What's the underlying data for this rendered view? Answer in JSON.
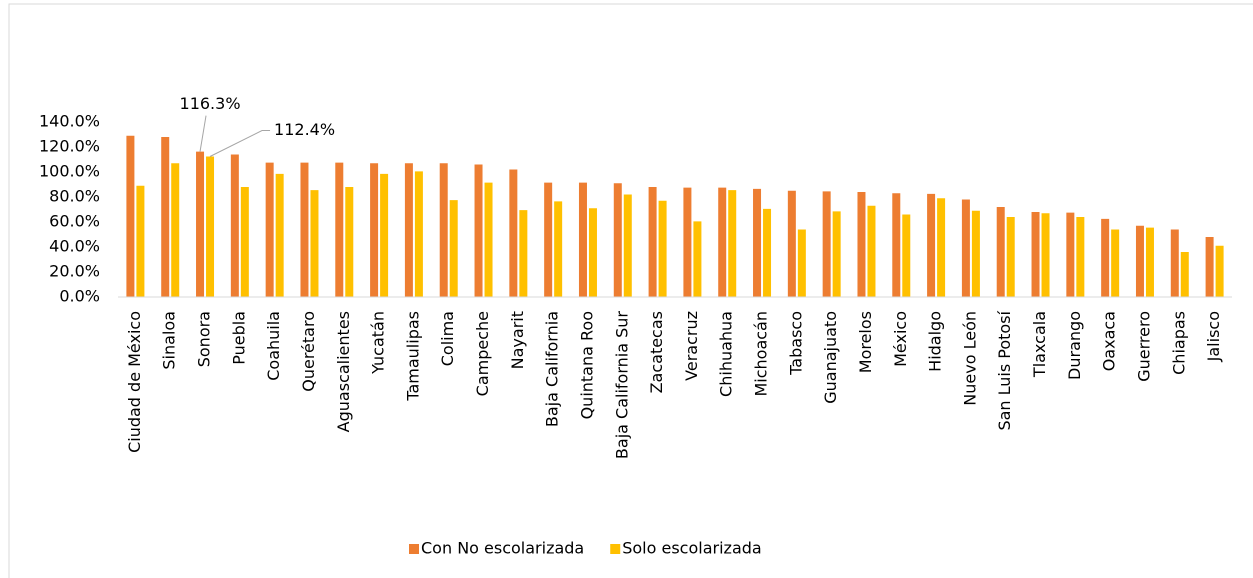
{
  "chart_data": {
    "type": "bar",
    "categories": [
      "Ciudad de México",
      "Sinaloa",
      "Sonora",
      "Puebla",
      "Coahuila",
      "Querétaro",
      "Aguascalientes",
      "Yucatán",
      "Tamaulipas",
      "Colima",
      "Campeche",
      "Nayarit",
      "Baja California",
      "Quintana Roo",
      "Baja California Sur",
      "Zacatecas",
      "Veracruz",
      "Chihuahua",
      "Michoacán",
      "Tabasco",
      "Guanajuato",
      "Morelos",
      "México",
      "Hidalgo",
      "Nuevo León",
      "San Luis Potosí",
      "Tlaxcala",
      "Durango",
      "Oaxaca",
      "Guerrero",
      "Chiapas",
      "Jalisco"
    ],
    "series": [
      {
        "name": "Con No escolarizada",
        "color": "#ed7d31",
        "values": [
          129,
          128,
          116.3,
          114,
          107.5,
          107.5,
          107.5,
          107,
          107,
          107,
          106,
          102,
          91.5,
          91.5,
          91,
          88,
          87.5,
          87.5,
          86.5,
          85,
          84.5,
          84,
          83,
          82.5,
          78,
          72,
          68,
          67.5,
          62.5,
          57,
          54,
          48
        ],
        "value_labels": [
          null,
          null,
          "116.3%",
          null,
          null,
          null,
          null,
          null,
          null,
          null,
          null,
          null,
          null,
          null,
          null,
          null,
          null,
          null,
          null,
          null,
          null,
          null,
          null,
          null,
          null,
          null,
          null,
          null,
          null,
          null,
          null,
          null
        ]
      },
      {
        "name": "Solo escolarizada",
        "color": "#ffc000",
        "values": [
          89,
          107,
          112.4,
          88,
          98.5,
          85.5,
          88,
          98.5,
          100.5,
          77.5,
          91.5,
          69.5,
          76.5,
          71,
          82,
          77,
          60.5,
          85.5,
          70.5,
          54,
          68.5,
          73,
          66,
          79,
          69,
          64,
          67,
          64,
          54,
          55.5,
          36,
          41
        ],
        "value_labels": [
          null,
          null,
          "112.4%",
          null,
          null,
          null,
          null,
          null,
          null,
          null,
          null,
          null,
          null,
          null,
          null,
          null,
          null,
          null,
          null,
          null,
          null,
          null,
          null,
          null,
          null,
          null,
          null,
          null,
          null,
          null,
          null,
          null
        ]
      }
    ],
    "ylim": [
      0,
      140
    ],
    "yticks": [
      {
        "value": 0,
        "label": "0.0%"
      },
      {
        "value": 20,
        "label": "20.0%"
      },
      {
        "value": 40,
        "label": "40.0%"
      },
      {
        "value": 60,
        "label": "60.0%"
      },
      {
        "value": 80,
        "label": "80.0%"
      },
      {
        "value": 100,
        "label": "100.0%"
      },
      {
        "value": 120,
        "label": "120.0%"
      },
      {
        "value": 140,
        "label": "140.0%"
      }
    ],
    "grid": false,
    "legend": "bottom"
  }
}
